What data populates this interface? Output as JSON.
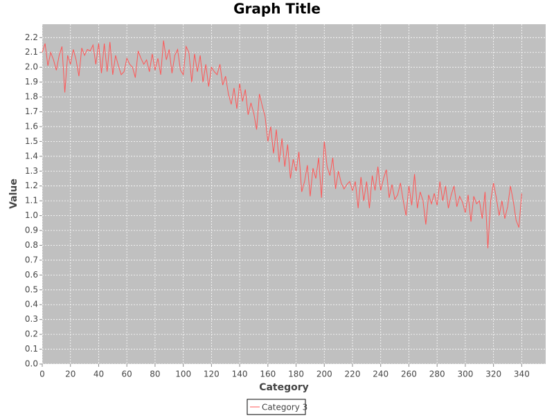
{
  "chart_data": {
    "type": "line",
    "title": "Graph Title",
    "x_label": "Category",
    "y_label": "Value",
    "x": [
      0,
      2,
      4,
      6,
      8,
      10,
      12,
      14,
      16,
      18,
      20,
      22,
      24,
      26,
      28,
      30,
      32,
      34,
      36,
      38,
      40,
      42,
      44,
      46,
      48,
      50,
      52,
      54,
      56,
      58,
      60,
      62,
      64,
      66,
      68,
      70,
      72,
      74,
      76,
      78,
      80,
      82,
      84,
      86,
      88,
      90,
      92,
      94,
      96,
      98,
      100,
      102,
      104,
      106,
      108,
      110,
      112,
      114,
      116,
      118,
      120,
      122,
      124,
      126,
      128,
      130,
      132,
      134,
      136,
      138,
      140,
      142,
      144,
      146,
      148,
      150,
      152,
      154,
      156,
      158,
      160,
      162,
      164,
      166,
      168,
      170,
      172,
      174,
      176,
      178,
      180,
      182,
      184,
      186,
      188,
      190,
      192,
      194,
      196,
      198,
      200,
      202,
      204,
      206,
      208,
      210,
      212,
      214,
      216,
      218,
      220,
      222,
      224,
      226,
      228,
      230,
      232,
      234,
      236,
      238,
      240,
      242,
      244,
      246,
      248,
      250,
      252,
      254,
      256,
      258,
      260,
      262,
      264,
      266,
      268,
      270,
      272,
      274,
      276,
      278,
      280,
      282,
      284,
      286,
      288,
      290,
      292,
      294,
      296,
      298,
      300,
      302,
      304,
      306,
      308,
      310,
      312,
      314,
      316,
      318,
      320,
      322,
      324,
      326,
      328,
      330,
      332,
      334,
      336,
      338,
      340
    ],
    "series": [
      {
        "name": "Category 3",
        "color": "#ff5555",
        "values": [
          2.1,
          2.16,
          2.01,
          2.1,
          2.05,
          1.98,
          2.08,
          2.14,
          1.83,
          2.08,
          2.02,
          2.12,
          2.05,
          1.94,
          2.13,
          2.08,
          2.12,
          2.11,
          2.15,
          2.02,
          2.16,
          1.96,
          2.16,
          1.97,
          2.17,
          1.95,
          2.08,
          2.01,
          1.95,
          1.97,
          2.06,
          2.02,
          2.0,
          1.93,
          2.11,
          2.06,
          2.02,
          2.05,
          1.97,
          2.09,
          1.98,
          2.06,
          1.95,
          2.18,
          2.05,
          2.12,
          1.96,
          2.08,
          2.12,
          1.98,
          1.95,
          2.14,
          2.1,
          1.9,
          2.09,
          1.97,
          2.08,
          1.9,
          2.02,
          1.87,
          2.0,
          1.97,
          1.95,
          2.02,
          1.88,
          1.94,
          1.82,
          1.75,
          1.86,
          1.72,
          1.89,
          1.77,
          1.85,
          1.68,
          1.76,
          1.69,
          1.58,
          1.82,
          1.74,
          1.67,
          1.5,
          1.6,
          1.42,
          1.58,
          1.36,
          1.52,
          1.33,
          1.48,
          1.25,
          1.38,
          1.3,
          1.43,
          1.16,
          1.23,
          1.34,
          1.13,
          1.32,
          1.25,
          1.39,
          1.12,
          1.5,
          1.33,
          1.27,
          1.39,
          1.18,
          1.3,
          1.22,
          1.18,
          1.21,
          1.23,
          1.17,
          1.23,
          1.05,
          1.26,
          1.1,
          1.23,
          1.05,
          1.27,
          1.17,
          1.33,
          1.17,
          1.25,
          1.31,
          1.12,
          1.21,
          1.11,
          1.14,
          1.22,
          1.1,
          1.0,
          1.2,
          1.07,
          1.28,
          1.05,
          1.16,
          1.1,
          0.94,
          1.14,
          1.08,
          1.15,
          1.07,
          1.23,
          1.1,
          1.2,
          1.05,
          1.14,
          1.2,
          1.06,
          1.13,
          1.09,
          1.02,
          1.14,
          0.96,
          1.13,
          1.08,
          1.1,
          0.98,
          1.16,
          0.78,
          1.1,
          1.22,
          1.12,
          1.0,
          1.1,
          0.98,
          1.06,
          1.2,
          1.1,
          0.97,
          0.92,
          1.15
        ]
      }
    ],
    "xlim": [
      0,
      357
    ],
    "ylim": [
      0,
      2.29
    ],
    "xticks": [
      0,
      20,
      40,
      60,
      80,
      100,
      120,
      140,
      160,
      180,
      200,
      220,
      240,
      260,
      280,
      300,
      320,
      340
    ],
    "yticks": [
      {
        "value": 0,
        "label": "0.0"
      },
      0.1,
      0.2,
      0.3,
      0.4,
      0.5,
      0.6,
      0.7,
      0.8,
      0.9,
      {
        "value": 1,
        "label": "1.0"
      },
      1.1,
      1.2,
      1.3,
      1.4,
      1.5,
      1.6,
      1.7,
      1.8,
      1.9,
      {
        "value": 2,
        "label": "2.0"
      },
      2.1,
      2.2
    ],
    "grid": true,
    "legend": "bottom"
  }
}
